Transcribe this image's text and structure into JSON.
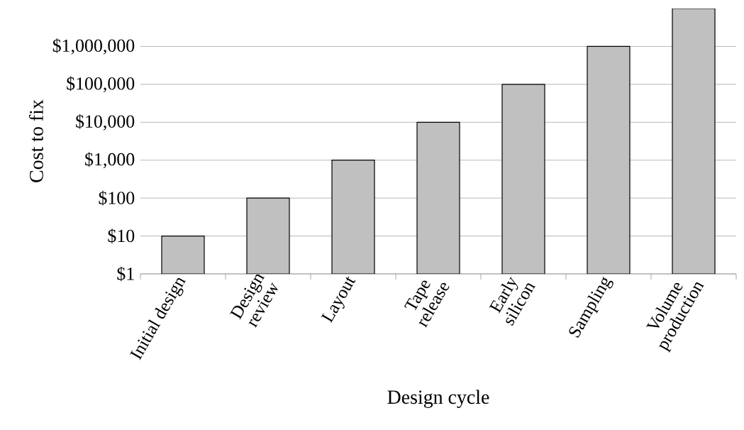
{
  "chart_data": {
    "type": "bar",
    "xlabel": "Design cycle",
    "ylabel": "Cost to fix",
    "categories": [
      "Initial design",
      "Design\nreview",
      "Layout",
      "Tape\nrelease",
      "Early\nsilicon",
      "Sampling",
      "Volume\nproduction"
    ],
    "values": [
      10,
      100,
      1000,
      10000,
      100000,
      1000000,
      10000000
    ],
    "color": "#c0c0c0",
    "log": true,
    "ylim": [
      1,
      10000000
    ],
    "yticks": [
      {
        "value": 1,
        "label": "$1"
      },
      {
        "value": 10,
        "label": "$10"
      },
      {
        "value": 100,
        "label": "$100"
      },
      {
        "value": 1000,
        "label": "$1,000"
      },
      {
        "value": 10000,
        "label": "$10,000"
      },
      {
        "value": 100000,
        "label": "$100,000"
      },
      {
        "value": 1000000,
        "label": "$1,000,000"
      }
    ],
    "grid": "y"
  }
}
